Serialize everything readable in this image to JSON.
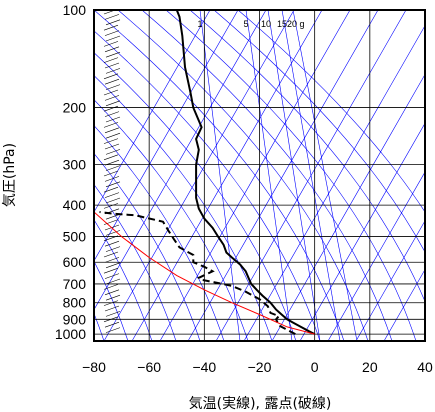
{
  "chart_data": {
    "type": "line",
    "title": "",
    "xlabel": "気温(実線), 露点(破線)",
    "ylabel": "気圧(hPa)",
    "xlim": [
      -80,
      40
    ],
    "ylim": [
      1050,
      100
    ],
    "yscale": "log",
    "grid": true,
    "x_ticks": [
      "−80",
      "−60",
      "−40",
      "−20",
      "0",
      "20",
      "40"
    ],
    "x_tick_values": [
      -80,
      -60,
      -40,
      -20,
      0,
      20,
      40
    ],
    "y_ticks": [
      "100",
      "200",
      "300",
      "400",
      "500",
      "600",
      "700",
      "800",
      "900",
      "1000"
    ],
    "y_tick_values": [
      100,
      200,
      300,
      400,
      500,
      600,
      700,
      800,
      900,
      1000
    ],
    "mixing_ratio_labels": [
      "1",
      "5",
      "10",
      "15",
      "20",
      "g"
    ],
    "colors": {
      "temperature": "#000000",
      "dewpoint": "#000000",
      "parcel": "#ff0000",
      "background_lines": "#0000ff",
      "grid": "#000000"
    },
    "series": [
      {
        "line_style": "solid",
        "points": [
          [
            0,
            1000
          ],
          [
            -2,
            980
          ],
          [
            -5,
            950
          ],
          [
            -8,
            920
          ],
          [
            -10,
            900
          ],
          [
            -12,
            870
          ],
          [
            -14,
            840
          ],
          [
            -16,
            800
          ],
          [
            -19,
            760
          ],
          [
            -21,
            730
          ],
          [
            -23,
            700
          ],
          [
            -24,
            670
          ],
          [
            -25,
            640
          ],
          [
            -27,
            610
          ],
          [
            -30,
            580
          ],
          [
            -32,
            560
          ],
          [
            -33,
            530
          ],
          [
            -35,
            500
          ],
          [
            -37,
            470
          ],
          [
            -40,
            440
          ],
          [
            -42,
            410
          ],
          [
            -43,
            380
          ],
          [
            -43,
            350
          ],
          [
            -43,
            320
          ],
          [
            -43,
            300
          ],
          [
            -42,
            270
          ],
          [
            -43,
            250
          ],
          [
            -41,
            230
          ],
          [
            -44,
            200
          ],
          [
            -45,
            180
          ],
          [
            -47,
            150
          ],
          [
            -48,
            120
          ],
          [
            -49,
            105
          ],
          [
            -50,
            100
          ]
        ]
      },
      {
        "line_style": "dashed",
        "points": [
          [
            -7,
            1000
          ],
          [
            -10,
            970
          ],
          [
            -13,
            940
          ],
          [
            -14,
            900
          ],
          [
            -13,
            880
          ],
          [
            -16,
            860
          ],
          [
            -17,
            820
          ],
          [
            -20,
            780
          ],
          [
            -25,
            740
          ],
          [
            -30,
            710
          ],
          [
            -37,
            690
          ],
          [
            -41,
            680
          ],
          [
            -42,
            670
          ],
          [
            -37,
            640
          ],
          [
            -40,
            620
          ],
          [
            -44,
            600
          ],
          [
            -44,
            570
          ],
          [
            -49,
            540
          ],
          [
            -51,
            510
          ],
          [
            -53,
            480
          ],
          [
            -55,
            450
          ],
          [
            -65,
            430
          ],
          [
            -73,
            425
          ],
          [
            -78,
            420
          ]
        ]
      },
      {
        "line_style": "solid-red",
        "points": [
          [
            0,
            1000
          ],
          [
            -10,
            950
          ],
          [
            -20,
            870
          ],
          [
            -30,
            800
          ],
          [
            -40,
            730
          ],
          [
            -50,
            660
          ],
          [
            -60,
            580
          ],
          [
            -70,
            500
          ],
          [
            -80,
            420
          ]
        ]
      }
    ]
  }
}
